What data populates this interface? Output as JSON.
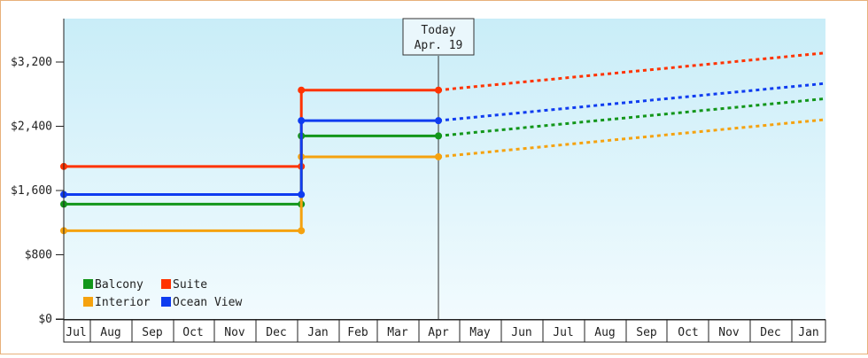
{
  "chart_data": {
    "type": "line",
    "x": [
      "Jul",
      "Aug",
      "Sep",
      "Oct",
      "Nov",
      "Dec",
      "Jan",
      "Feb",
      "Mar",
      "Apr",
      "May",
      "Jun",
      "Jul",
      "Aug",
      "Sep",
      "Oct",
      "Nov",
      "Dec",
      "Jan"
    ],
    "y_ticks": [
      "$0",
      "$800",
      "$1,600",
      "$2,400",
      "$3,200"
    ],
    "ylim": [
      0,
      3200
    ],
    "grid": false,
    "legend_position": "bottom-left",
    "today_marker": {
      "title": "Today",
      "date": "Apr. 19",
      "x": 9.0
    },
    "series": [
      {
        "name": "Balcony",
        "color": "#12961a",
        "solid": [
          [
            0,
            1430
          ],
          [
            5.6,
            1430
          ],
          [
            5.6,
            2280
          ],
          [
            9.0,
            2280
          ]
        ],
        "projected": [
          [
            9.0,
            2280
          ],
          [
            18.8,
            2760
          ]
        ]
      },
      {
        "name": "Suite",
        "color": "#ff3300",
        "solid": [
          [
            0,
            1900
          ],
          [
            5.6,
            1900
          ],
          [
            5.6,
            2850
          ],
          [
            9.0,
            2850
          ]
        ],
        "projected": [
          [
            9.0,
            2850
          ],
          [
            18.8,
            3330
          ]
        ]
      },
      {
        "name": "Interior",
        "color": "#f5a20f",
        "solid": [
          [
            0,
            1100
          ],
          [
            5.6,
            1100
          ],
          [
            5.6,
            2020
          ],
          [
            9.0,
            2020
          ]
        ],
        "projected": [
          [
            9.0,
            2020
          ],
          [
            18.8,
            2500
          ]
        ]
      },
      {
        "name": "Ocean View",
        "color": "#0f3cf0",
        "solid": [
          [
            0,
            1550
          ],
          [
            5.6,
            1550
          ],
          [
            5.6,
            2470
          ],
          [
            9.0,
            2470
          ]
        ],
        "projected": [
          [
            9.0,
            2470
          ],
          [
            18.8,
            2950
          ]
        ]
      }
    ]
  }
}
